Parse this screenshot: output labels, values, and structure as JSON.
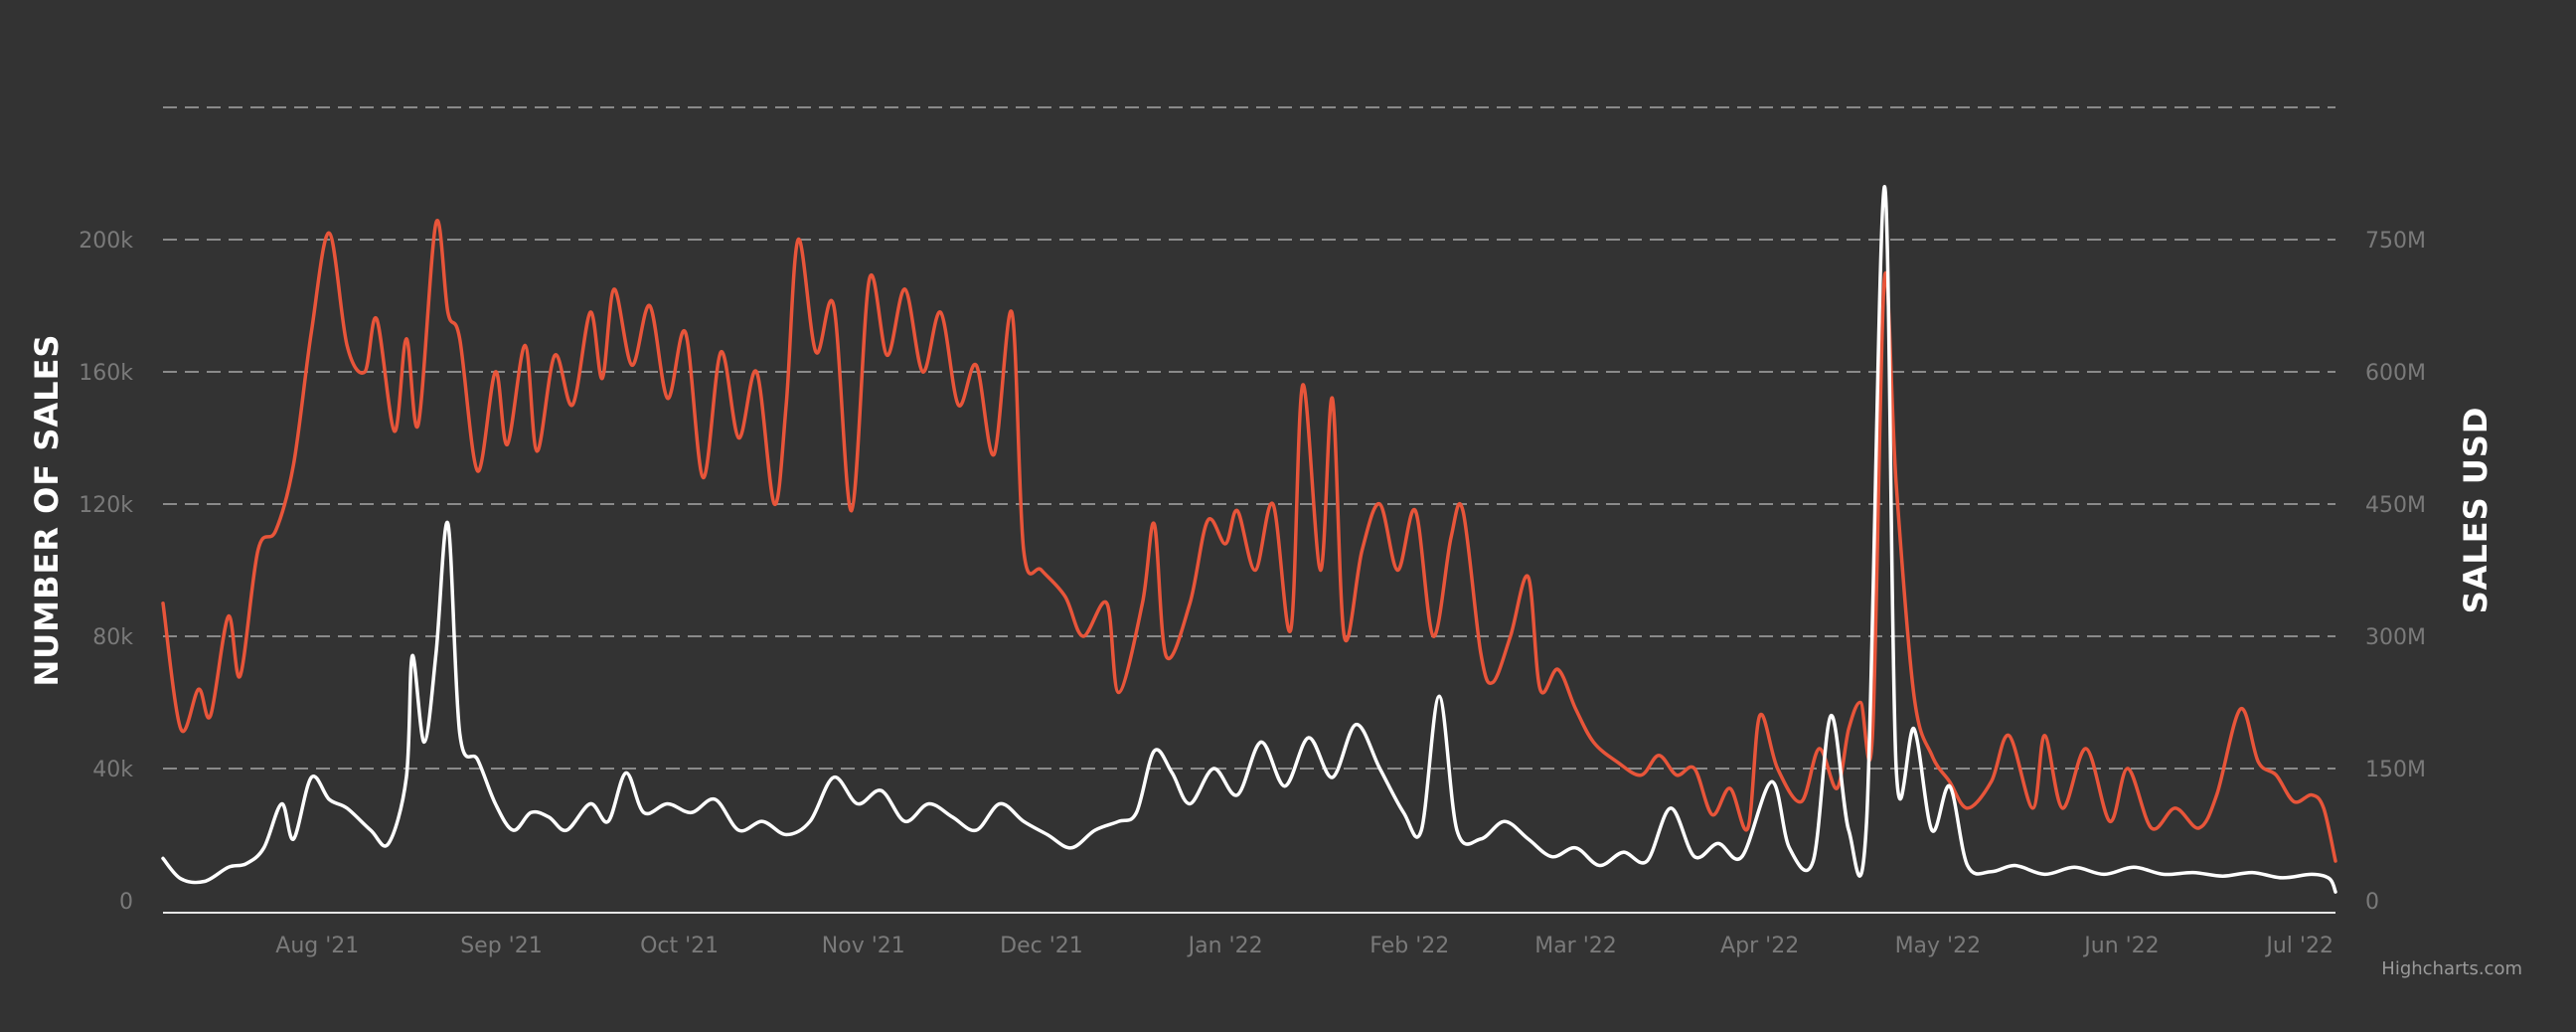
{
  "credit": "Highcharts.com",
  "colors": {
    "background": "#333333",
    "sales_count": "#e8553a",
    "sales_usd": "#ffffff",
    "grid": "#8a8a8a",
    "tick": "#7a7a7a"
  },
  "chart_data": {
    "type": "line",
    "title": "",
    "xlabel": "",
    "y_left_label": "NUMBER OF SALES",
    "y_right_label": "SALES USD",
    "grid": true,
    "x_range": [
      "2021-07-21",
      "2022-07-22"
    ],
    "x_ticks": [
      {
        "date": "2021-08-01",
        "label": "Aug '21"
      },
      {
        "date": "2021-09-01",
        "label": "Sep '21"
      },
      {
        "date": "2021-10-01",
        "label": "Oct '21"
      },
      {
        "date": "2021-11-01",
        "label": "Nov '21"
      },
      {
        "date": "2021-12-01",
        "label": "Dec '21"
      },
      {
        "date": "2022-01-01",
        "label": "Jan '22"
      },
      {
        "date": "2022-02-01",
        "label": "Feb '22"
      },
      {
        "date": "2022-03-01",
        "label": "Mar '22"
      },
      {
        "date": "2022-04-01",
        "label": "Apr '22"
      },
      {
        "date": "2022-05-01",
        "label": "May '22"
      },
      {
        "date": "2022-06-01",
        "label": "Jun '22"
      },
      {
        "date": "2022-07-01",
        "label": "Jul '22"
      }
    ],
    "y_left": {
      "ylim": [
        0,
        240000
      ],
      "ticks": [
        0,
        40000,
        80000,
        120000,
        160000,
        200000
      ],
      "tick_labels": [
        "0",
        "40k",
        "80k",
        "120k",
        "160k",
        "200k"
      ]
    },
    "y_right": {
      "ylim": [
        0,
        900000000
      ],
      "ticks": [
        0,
        150000000,
        300000000,
        450000000,
        600000000,
        750000000
      ],
      "tick_labels": [
        "0",
        "150M",
        "300M",
        "450M",
        "600M",
        "750M"
      ]
    },
    "series": [
      {
        "name": "",
        "axis": "left",
        "color": "#e8553a",
        "points": [
          [
            "2021-07-21",
            90000
          ],
          [
            "2021-07-24",
            52000
          ],
          [
            "2021-07-27",
            64000
          ],
          [
            "2021-07-29",
            56000
          ],
          [
            "2021-08-01",
            86000
          ],
          [
            "2021-08-03",
            68000
          ],
          [
            "2021-08-06",
            106000
          ],
          [
            "2021-08-09",
            112000
          ],
          [
            "2021-08-12",
            132000
          ],
          [
            "2021-08-15",
            172000
          ],
          [
            "2021-08-18",
            202000
          ],
          [
            "2021-08-21",
            168000
          ],
          [
            "2021-08-24",
            160000
          ],
          [
            "2021-08-26",
            176000
          ],
          [
            "2021-08-29",
            142000
          ],
          [
            "2021-08-31",
            170000
          ],
          [
            "2021-09-02",
            144000
          ],
          [
            "2021-09-05",
            205000
          ],
          [
            "2021-09-07",
            178000
          ],
          [
            "2021-09-09",
            170000
          ],
          [
            "2021-09-12",
            130000
          ],
          [
            "2021-09-15",
            160000
          ],
          [
            "2021-09-17",
            138000
          ],
          [
            "2021-09-20",
            168000
          ],
          [
            "2021-09-22",
            136000
          ],
          [
            "2021-09-25",
            165000
          ],
          [
            "2021-09-28",
            150000
          ],
          [
            "2021-10-01",
            178000
          ],
          [
            "2021-10-03",
            158000
          ],
          [
            "2021-10-05",
            185000
          ],
          [
            "2021-10-08",
            162000
          ],
          [
            "2021-10-11",
            180000
          ],
          [
            "2021-10-14",
            152000
          ],
          [
            "2021-10-17",
            172000
          ],
          [
            "2021-10-20",
            128000
          ],
          [
            "2021-10-23",
            166000
          ],
          [
            "2021-10-26",
            140000
          ],
          [
            "2021-10-29",
            160000
          ],
          [
            "2021-11-01",
            120000
          ],
          [
            "2021-11-03",
            150000
          ],
          [
            "2021-11-05",
            200000
          ],
          [
            "2021-11-08",
            166000
          ],
          [
            "2021-11-11",
            180000
          ],
          [
            "2021-11-14",
            118000
          ],
          [
            "2021-11-17",
            188000
          ],
          [
            "2021-11-20",
            165000
          ],
          [
            "2021-11-23",
            185000
          ],
          [
            "2021-11-26",
            160000
          ],
          [
            "2021-11-29",
            178000
          ],
          [
            "2021-12-02",
            150000
          ],
          [
            "2021-12-05",
            162000
          ],
          [
            "2021-12-08",
            135000
          ],
          [
            "2021-12-11",
            178000
          ],
          [
            "2021-12-13",
            106000
          ],
          [
            "2021-12-16",
            100000
          ],
          [
            "2021-12-20",
            92000
          ],
          [
            "2021-12-23",
            80000
          ],
          [
            "2021-12-27",
            90000
          ],
          [
            "2021-12-29",
            63000
          ],
          [
            "2022-01-02",
            90000
          ],
          [
            "2022-01-04",
            114000
          ],
          [
            "2022-01-06",
            74000
          ],
          [
            "2022-01-10",
            90000
          ],
          [
            "2022-01-13",
            115000
          ],
          [
            "2022-01-16",
            108000
          ],
          [
            "2022-01-18",
            118000
          ],
          [
            "2022-01-21",
            100000
          ],
          [
            "2022-01-24",
            120000
          ],
          [
            "2022-01-27",
            82000
          ],
          [
            "2022-01-29",
            156000
          ],
          [
            "2022-02-01",
            100000
          ],
          [
            "2022-02-03",
            152000
          ],
          [
            "2022-02-05",
            80000
          ],
          [
            "2022-02-08",
            106000
          ],
          [
            "2022-02-11",
            120000
          ],
          [
            "2022-02-14",
            100000
          ],
          [
            "2022-02-17",
            118000
          ],
          [
            "2022-02-20",
            80000
          ],
          [
            "2022-02-23",
            110000
          ],
          [
            "2022-02-25",
            118000
          ],
          [
            "2022-02-28",
            75000
          ],
          [
            "2022-03-02",
            66000
          ],
          [
            "2022-03-05",
            80000
          ],
          [
            "2022-03-08",
            98000
          ],
          [
            "2022-03-10",
            64000
          ],
          [
            "2022-03-13",
            70000
          ],
          [
            "2022-03-16",
            58000
          ],
          [
            "2022-03-19",
            48000
          ],
          [
            "2022-03-23",
            42000
          ],
          [
            "2022-03-27",
            38000
          ],
          [
            "2022-03-30",
            44000
          ],
          [
            "2022-04-02",
            38000
          ],
          [
            "2022-04-05",
            40000
          ],
          [
            "2022-04-08",
            26000
          ],
          [
            "2022-04-11",
            34000
          ],
          [
            "2022-04-14",
            22000
          ],
          [
            "2022-04-16",
            56000
          ],
          [
            "2022-04-19",
            40000
          ],
          [
            "2022-04-23",
            30000
          ],
          [
            "2022-04-26",
            46000
          ],
          [
            "2022-04-29",
            34000
          ],
          [
            "2022-05-01",
            52000
          ],
          [
            "2022-05-03",
            60000
          ],
          [
            "2022-05-05",
            50000
          ],
          [
            "2022-05-07",
            188000
          ],
          [
            "2022-05-09",
            126000
          ],
          [
            "2022-05-12",
            62000
          ],
          [
            "2022-05-15",
            44000
          ],
          [
            "2022-05-18",
            36000
          ],
          [
            "2022-05-21",
            28000
          ],
          [
            "2022-05-25",
            36000
          ],
          [
            "2022-05-28",
            50000
          ],
          [
            "2022-06-01",
            28000
          ],
          [
            "2022-06-03",
            50000
          ],
          [
            "2022-06-06",
            28000
          ],
          [
            "2022-06-10",
            46000
          ],
          [
            "2022-06-14",
            24000
          ],
          [
            "2022-06-17",
            40000
          ],
          [
            "2022-06-21",
            22000
          ],
          [
            "2022-06-25",
            28000
          ],
          [
            "2022-06-29",
            22000
          ],
          [
            "2022-07-02",
            32000
          ],
          [
            "2022-07-06",
            58000
          ],
          [
            "2022-07-09",
            42000
          ],
          [
            "2022-07-12",
            38000
          ],
          [
            "2022-07-15",
            30000
          ],
          [
            "2022-07-18",
            32000
          ],
          [
            "2022-07-20",
            28000
          ],
          [
            "2022-07-22",
            12000
          ]
        ]
      },
      {
        "name": "",
        "axis": "right",
        "color": "#ffffff",
        "points": [
          [
            "2021-07-21",
            48000000
          ],
          [
            "2021-07-24",
            25000000
          ],
          [
            "2021-07-28",
            22000000
          ],
          [
            "2021-08-01",
            38000000
          ],
          [
            "2021-08-04",
            42000000
          ],
          [
            "2021-08-07",
            60000000
          ],
          [
            "2021-08-10",
            110000000
          ],
          [
            "2021-08-12",
            70000000
          ],
          [
            "2021-08-15",
            140000000
          ],
          [
            "2021-08-18",
            115000000
          ],
          [
            "2021-08-21",
            105000000
          ],
          [
            "2021-08-25",
            80000000
          ],
          [
            "2021-08-28",
            65000000
          ],
          [
            "2021-08-31",
            140000000
          ],
          [
            "2021-09-01",
            278000000
          ],
          [
            "2021-09-03",
            180000000
          ],
          [
            "2021-09-05",
            280000000
          ],
          [
            "2021-09-07",
            428000000
          ],
          [
            "2021-09-09",
            190000000
          ],
          [
            "2021-09-12",
            160000000
          ],
          [
            "2021-09-15",
            110000000
          ],
          [
            "2021-09-18",
            80000000
          ],
          [
            "2021-09-21",
            100000000
          ],
          [
            "2021-09-24",
            95000000
          ],
          [
            "2021-09-27",
            80000000
          ],
          [
            "2021-10-01",
            110000000
          ],
          [
            "2021-10-04",
            90000000
          ],
          [
            "2021-10-07",
            145000000
          ],
          [
            "2021-10-10",
            100000000
          ],
          [
            "2021-10-14",
            110000000
          ],
          [
            "2021-10-18",
            100000000
          ],
          [
            "2021-10-22",
            115000000
          ],
          [
            "2021-10-26",
            80000000
          ],
          [
            "2021-10-30",
            90000000
          ],
          [
            "2021-11-03",
            75000000
          ],
          [
            "2021-11-07",
            90000000
          ],
          [
            "2021-11-11",
            140000000
          ],
          [
            "2021-11-15",
            110000000
          ],
          [
            "2021-11-19",
            125000000
          ],
          [
            "2021-11-23",
            90000000
          ],
          [
            "2021-11-27",
            110000000
          ],
          [
            "2021-12-01",
            95000000
          ],
          [
            "2021-12-05",
            80000000
          ],
          [
            "2021-12-09",
            110000000
          ],
          [
            "2021-12-13",
            90000000
          ],
          [
            "2021-12-17",
            75000000
          ],
          [
            "2021-12-21",
            60000000
          ],
          [
            "2021-12-25",
            80000000
          ],
          [
            "2021-12-29",
            90000000
          ],
          [
            "2022-01-01",
            100000000
          ],
          [
            "2022-01-04",
            170000000
          ],
          [
            "2022-01-07",
            145000000
          ],
          [
            "2022-01-10",
            110000000
          ],
          [
            "2022-01-14",
            150000000
          ],
          [
            "2022-01-18",
            120000000
          ],
          [
            "2022-01-22",
            180000000
          ],
          [
            "2022-01-26",
            130000000
          ],
          [
            "2022-01-30",
            185000000
          ],
          [
            "2022-02-03",
            140000000
          ],
          [
            "2022-02-07",
            200000000
          ],
          [
            "2022-02-11",
            150000000
          ],
          [
            "2022-02-15",
            100000000
          ],
          [
            "2022-02-18",
            80000000
          ],
          [
            "2022-02-21",
            232000000
          ],
          [
            "2022-02-24",
            80000000
          ],
          [
            "2022-02-28",
            70000000
          ],
          [
            "2022-03-04",
            90000000
          ],
          [
            "2022-03-08",
            70000000
          ],
          [
            "2022-03-12",
            50000000
          ],
          [
            "2022-03-16",
            60000000
          ],
          [
            "2022-03-20",
            40000000
          ],
          [
            "2022-03-24",
            55000000
          ],
          [
            "2022-03-28",
            45000000
          ],
          [
            "2022-04-01",
            105000000
          ],
          [
            "2022-04-05",
            50000000
          ],
          [
            "2022-04-09",
            65000000
          ],
          [
            "2022-04-13",
            50000000
          ],
          [
            "2022-04-18",
            135000000
          ],
          [
            "2022-04-21",
            60000000
          ],
          [
            "2022-04-25",
            45000000
          ],
          [
            "2022-04-28",
            210000000
          ],
          [
            "2022-05-01",
            80000000
          ],
          [
            "2022-05-04",
            90000000
          ],
          [
            "2022-05-07",
            810000000
          ],
          [
            "2022-05-09",
            150000000
          ],
          [
            "2022-05-12",
            195000000
          ],
          [
            "2022-05-15",
            80000000
          ],
          [
            "2022-05-18",
            130000000
          ],
          [
            "2022-05-21",
            40000000
          ],
          [
            "2022-05-25",
            33000000
          ],
          [
            "2022-05-29",
            40000000
          ],
          [
            "2022-06-03",
            30000000
          ],
          [
            "2022-06-08",
            38000000
          ],
          [
            "2022-06-13",
            30000000
          ],
          [
            "2022-06-18",
            38000000
          ],
          [
            "2022-06-23",
            30000000
          ],
          [
            "2022-06-28",
            32000000
          ],
          [
            "2022-07-03",
            28000000
          ],
          [
            "2022-07-08",
            32000000
          ],
          [
            "2022-07-13",
            26000000
          ],
          [
            "2022-07-18",
            30000000
          ],
          [
            "2022-07-21",
            25000000
          ],
          [
            "2022-07-22",
            10000000
          ]
        ]
      }
    ]
  }
}
